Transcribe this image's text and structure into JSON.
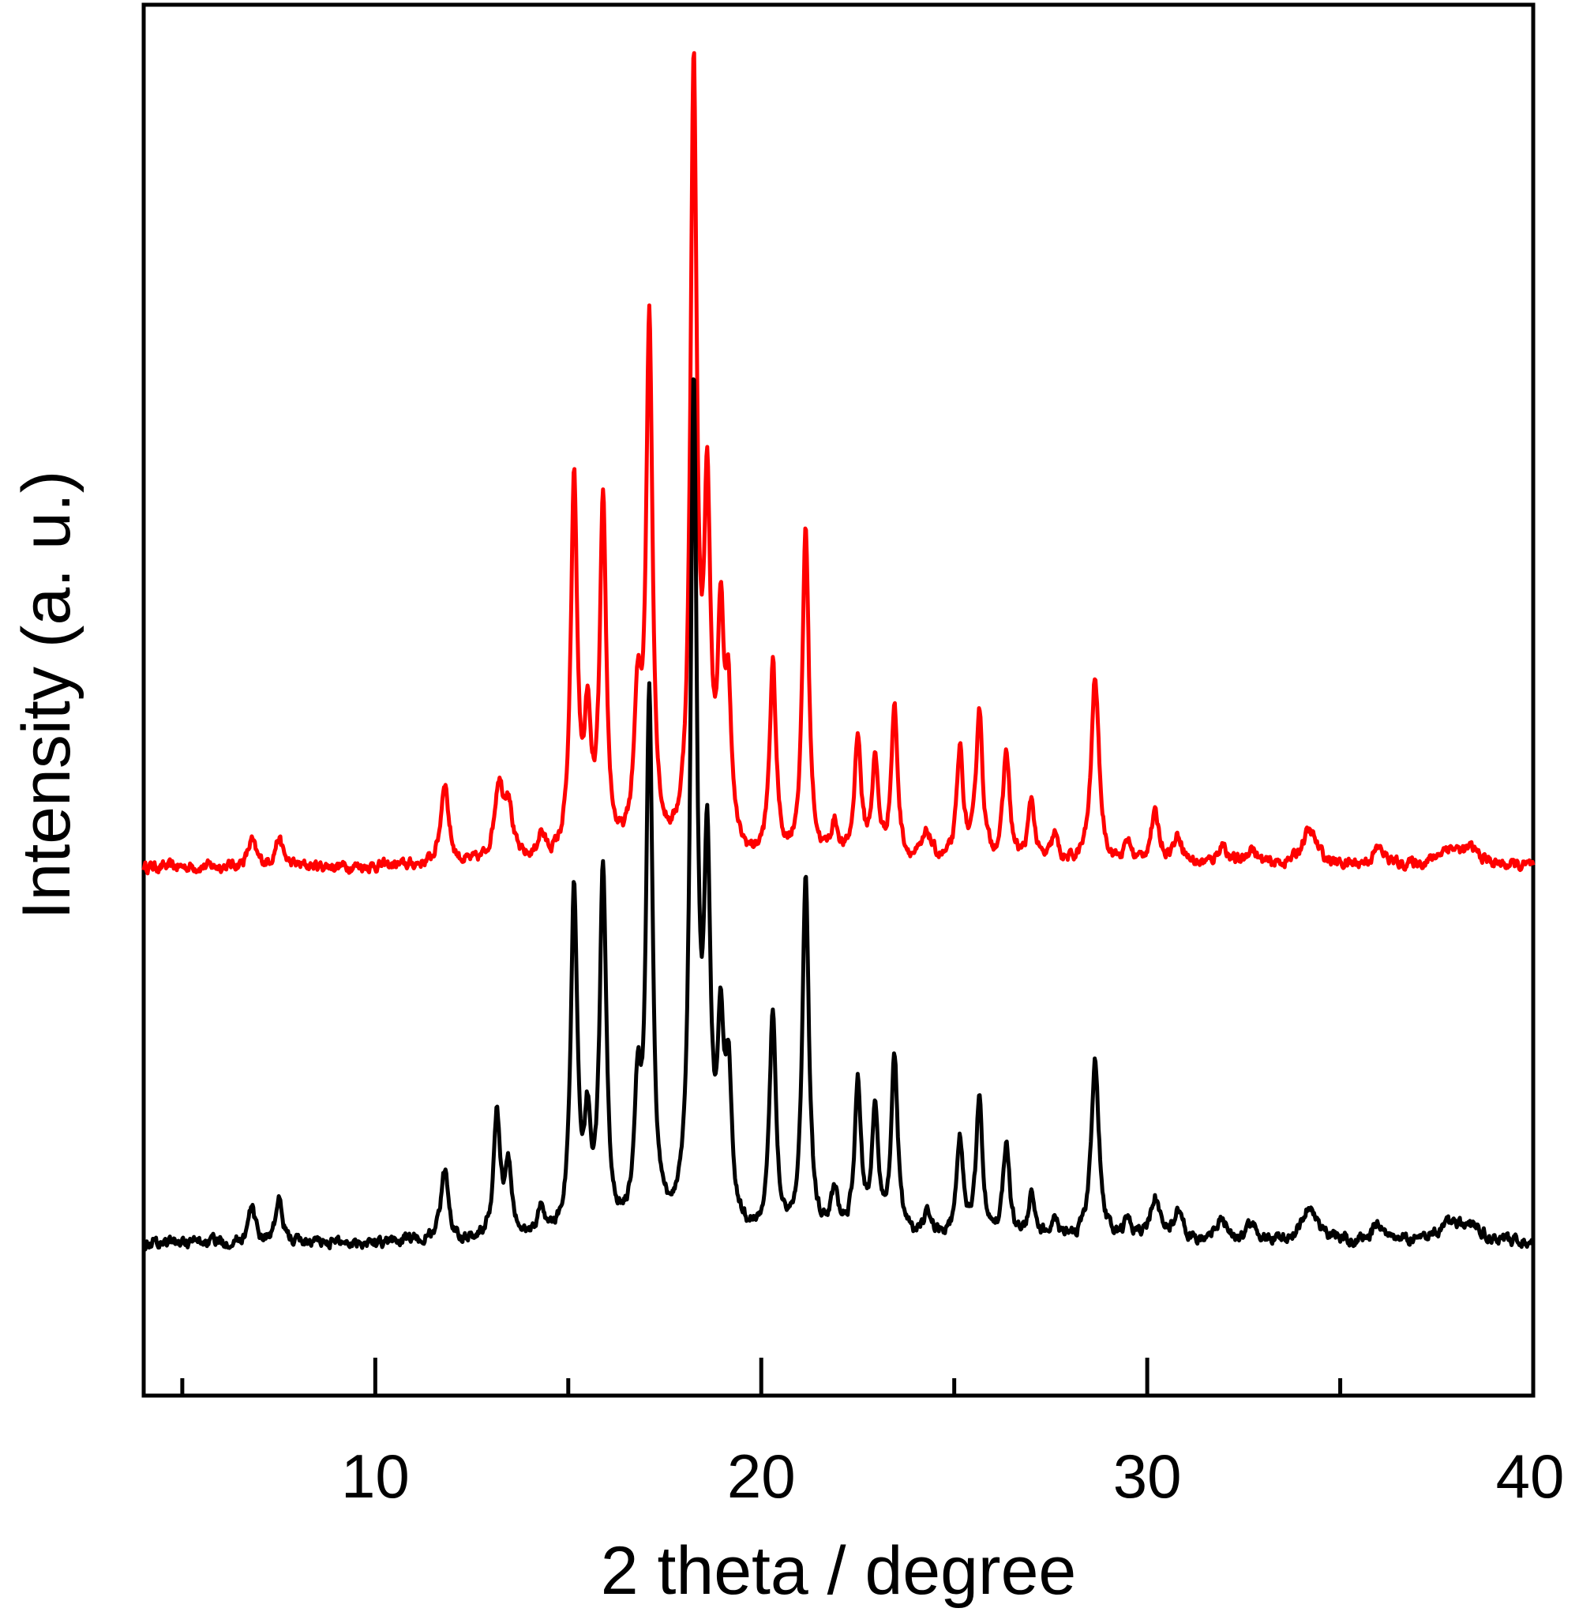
{
  "chart_data": {
    "type": "line",
    "title": "",
    "xlabel": "2 theta / degree",
    "ylabel": "Intensity (a. u.)",
    "xlim": [
      4,
      40
    ],
    "ylim": [
      0,
      1
    ],
    "x_major_ticks": [
      10,
      20,
      30,
      40
    ],
    "x_minor_ticks": [
      5,
      15,
      25,
      35
    ],
    "y_ticks_shown": false,
    "grid": false,
    "legend": "none",
    "series": [
      {
        "color": "#ff0000",
        "baseline": 0.38,
        "peaks": [
          [
            6.8,
            0.018,
            0.12
          ],
          [
            7.5,
            0.02,
            0.12
          ],
          [
            11.8,
            0.06,
            0.12
          ],
          [
            13.2,
            0.055,
            0.14
          ],
          [
            13.45,
            0.04,
            0.12
          ],
          [
            14.3,
            0.018,
            0.12
          ],
          [
            15.15,
            0.27,
            0.1
          ],
          [
            15.5,
            0.09,
            0.1
          ],
          [
            15.9,
            0.25,
            0.1
          ],
          [
            16.8,
            0.1,
            0.12
          ],
          [
            17.1,
            0.38,
            0.1
          ],
          [
            18.25,
            0.56,
            0.1
          ],
          [
            18.6,
            0.24,
            0.1
          ],
          [
            18.95,
            0.15,
            0.1
          ],
          [
            19.15,
            0.1,
            0.1
          ],
          [
            20.3,
            0.14,
            0.1
          ],
          [
            21.15,
            0.24,
            0.1
          ],
          [
            21.9,
            0.025,
            0.12
          ],
          [
            22.5,
            0.09,
            0.1
          ],
          [
            22.95,
            0.07,
            0.1
          ],
          [
            23.45,
            0.11,
            0.1
          ],
          [
            24.3,
            0.02,
            0.15
          ],
          [
            25.15,
            0.08,
            0.1
          ],
          [
            25.65,
            0.11,
            0.1
          ],
          [
            26.35,
            0.08,
            0.1
          ],
          [
            27.0,
            0.045,
            0.1
          ],
          [
            27.6,
            0.02,
            0.1
          ],
          [
            28.65,
            0.135,
            0.12
          ],
          [
            29.5,
            0.015,
            0.1
          ],
          [
            30.2,
            0.035,
            0.14
          ],
          [
            30.8,
            0.02,
            0.15
          ],
          [
            31.95,
            0.015,
            0.15
          ],
          [
            32.7,
            0.012,
            0.15
          ],
          [
            34.2,
            0.025,
            0.25
          ],
          [
            36.0,
            0.012,
            0.2
          ],
          [
            37.8,
            0.012,
            0.35
          ],
          [
            38.4,
            0.01,
            0.3
          ]
        ]
      },
      {
        "color": "#000000",
        "baseline": 0.11,
        "peaks": [
          [
            6.8,
            0.025,
            0.1
          ],
          [
            7.5,
            0.03,
            0.1
          ],
          [
            11.8,
            0.05,
            0.12
          ],
          [
            13.15,
            0.09,
            0.1
          ],
          [
            13.45,
            0.05,
            0.1
          ],
          [
            14.3,
            0.02,
            0.12
          ],
          [
            15.15,
            0.25,
            0.1
          ],
          [
            15.5,
            0.07,
            0.1
          ],
          [
            15.9,
            0.26,
            0.1
          ],
          [
            16.8,
            0.09,
            0.1
          ],
          [
            17.1,
            0.38,
            0.1
          ],
          [
            18.25,
            0.6,
            0.1
          ],
          [
            18.6,
            0.25,
            0.1
          ],
          [
            18.95,
            0.13,
            0.1
          ],
          [
            19.15,
            0.1,
            0.1
          ],
          [
            20.3,
            0.16,
            0.1
          ],
          [
            21.15,
            0.26,
            0.1
          ],
          [
            21.9,
            0.03,
            0.12
          ],
          [
            22.5,
            0.11,
            0.1
          ],
          [
            22.95,
            0.09,
            0.1
          ],
          [
            23.45,
            0.13,
            0.1
          ],
          [
            24.3,
            0.015,
            0.15
          ],
          [
            25.15,
            0.07,
            0.1
          ],
          [
            25.65,
            0.1,
            0.1
          ],
          [
            26.35,
            0.07,
            0.1
          ],
          [
            27.0,
            0.03,
            0.1
          ],
          [
            27.6,
            0.02,
            0.1
          ],
          [
            28.65,
            0.13,
            0.12
          ],
          [
            29.5,
            0.015,
            0.1
          ],
          [
            30.2,
            0.03,
            0.14
          ],
          [
            30.8,
            0.02,
            0.15
          ],
          [
            31.95,
            0.015,
            0.15
          ],
          [
            32.7,
            0.012,
            0.15
          ],
          [
            34.2,
            0.025,
            0.25
          ],
          [
            36.0,
            0.012,
            0.2
          ],
          [
            37.8,
            0.012,
            0.35
          ],
          [
            38.4,
            0.01,
            0.3
          ]
        ]
      }
    ]
  }
}
